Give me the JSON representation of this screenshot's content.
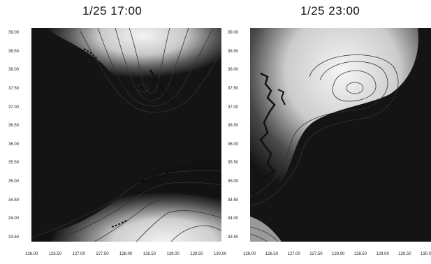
{
  "panels": [
    {
      "title": "1/25 17:00",
      "y_ticks": [
        "39.00",
        "38.50",
        "38.00",
        "37.50",
        "37.00",
        "36.50",
        "36.00",
        "35.50",
        "35.00",
        "34.50",
        "34.00",
        "33.50"
      ],
      "x_ticks": [
        "126.00",
        "126.50",
        "127.00",
        "127.50",
        "128.00",
        "128.50",
        "129.00",
        "129.50",
        "130.00"
      ]
    },
    {
      "title": "1/25 23:00",
      "y_ticks": [
        "39.00",
        "38.50",
        "38.00",
        "37.50",
        "37.00",
        "36.50",
        "36.00",
        "35.50",
        "35.00",
        "34.50",
        "34.00",
        "33.50"
      ],
      "x_ticks": [
        "126.00",
        "126.50",
        "127.00",
        "127.50",
        "128.00",
        "128.50",
        "129.00",
        "129.50",
        "130.00"
      ]
    }
  ],
  "colors": {
    "field_dark": "#111111",
    "field_light": "#e6e6e6",
    "coast": "#1a1a1a"
  }
}
